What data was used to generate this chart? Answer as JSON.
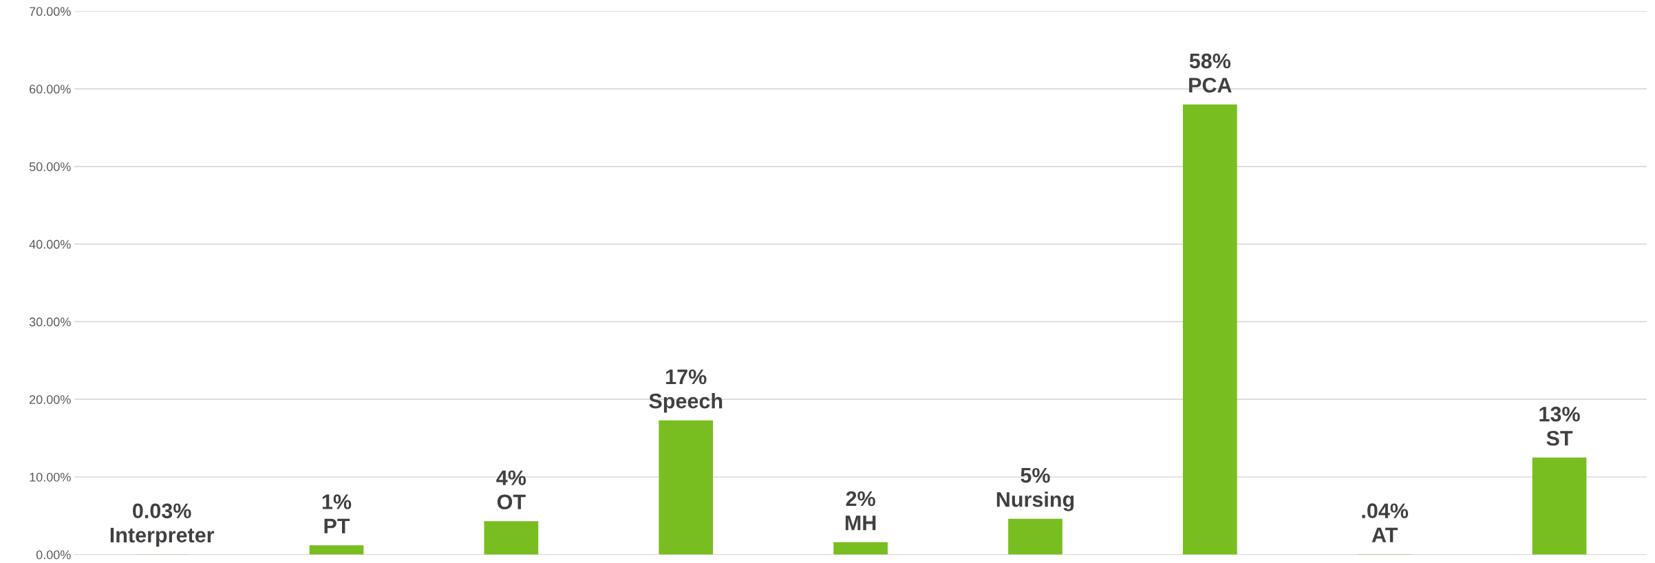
{
  "chart_data": {
    "type": "bar",
    "categories": [
      null,
      null,
      null,
      null,
      null,
      null,
      null,
      null,
      null
    ],
    "values": [
      0.03,
      1.2,
      4.3,
      17.3,
      1.6,
      4.6,
      58.0,
      0.04,
      12.5
    ],
    "value_labels": [
      "0.03%\nInterpreter",
      "1%\nPT",
      "4%\nOT",
      "17%\nSpeech",
      "2%\nMH",
      "5%\nNursing",
      "58%\nPCA",
      ".04%\nAT",
      "13%\nST"
    ],
    "color": "#78be20",
    "ylim": [
      0,
      70
    ],
    "yticks": [
      {
        "value": 0,
        "label": "0.00%"
      },
      {
        "value": 10,
        "label": "10.00%"
      },
      {
        "value": 20,
        "label": "20.00%"
      },
      {
        "value": 30,
        "label": "30.00%"
      },
      {
        "value": 40,
        "label": "40.00%"
      },
      {
        "value": 50,
        "label": "50.00%"
      },
      {
        "value": 60,
        "label": "60.00%"
      },
      {
        "value": 70,
        "label": "70.00%"
      }
    ],
    "grid": "y",
    "legend": false
  }
}
